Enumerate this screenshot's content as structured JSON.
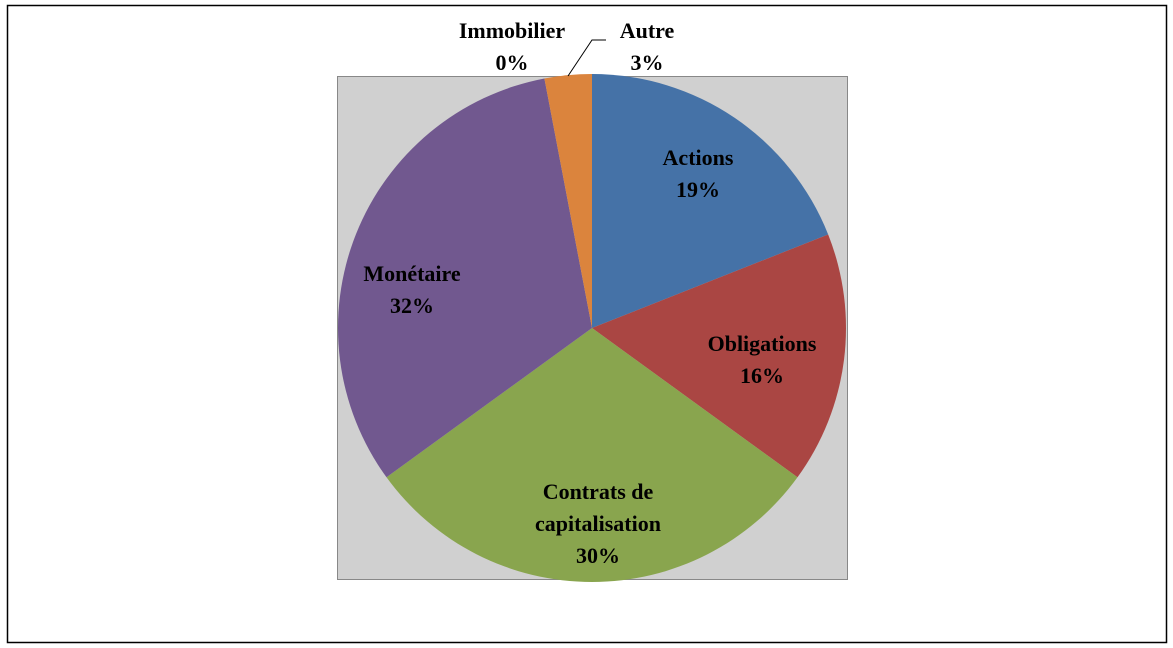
{
  "chart_data": {
    "type": "pie",
    "categories": [
      "Actions",
      "Obligations",
      "Contrats de capitalisation",
      "Monétaire",
      "Immobilier",
      "Autre"
    ],
    "values": [
      19,
      16,
      30,
      32,
      0,
      3
    ],
    "value_labels": [
      "19%",
      "16%",
      "30%",
      "32%",
      "0%",
      "3%"
    ],
    "colors": [
      "#4572a7",
      "#aa4643",
      "#89a54e",
      "#71588f",
      "#4198af",
      "#db843d"
    ]
  }
}
